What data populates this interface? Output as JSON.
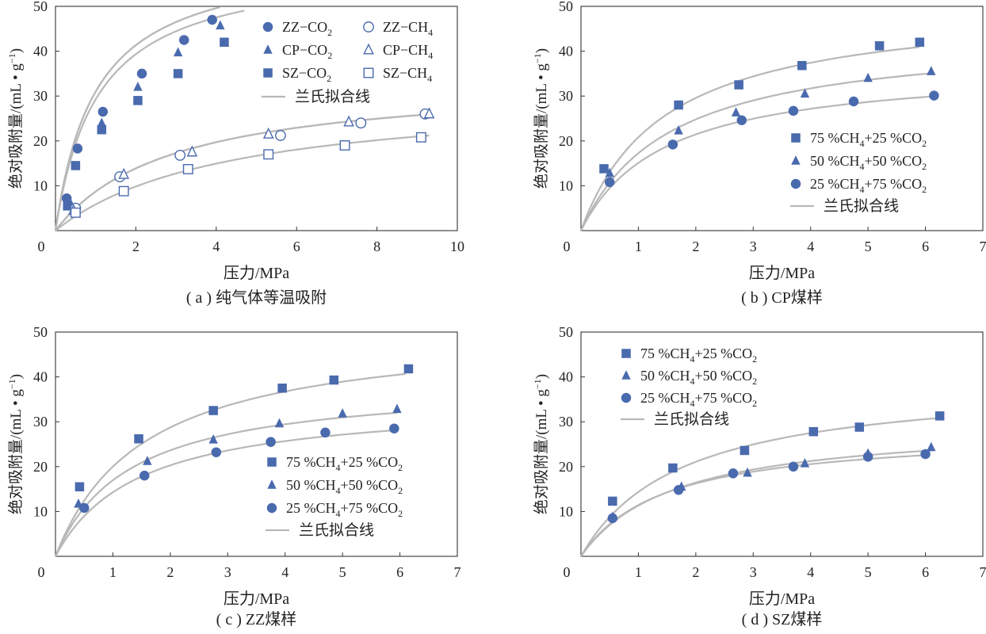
{
  "colors": {
    "marker": "#4a6aae",
    "fit": "#b8b8b8",
    "axis": "#333333"
  },
  "chart_data": [
    {
      "type": "scatter",
      "caption": "( a ) 纯气体等温吸附",
      "xlabel": "压力/MPa",
      "ylabel": "绝对吸附量/(mL • g",
      "ylabel_sup": "−1",
      "ylabel_tail": ")",
      "xlim": [
        0,
        10
      ],
      "ylim": [
        0,
        50
      ],
      "xticks": [
        "0",
        "2",
        "4",
        "6",
        "8",
        "10"
      ],
      "yticks": [
        "0",
        "10",
        "20",
        "30",
        "40",
        "50"
      ],
      "legend_pos": "top-right",
      "fit_label": "兰氏拟合线",
      "series": [
        {
          "name": "ZZ−CO",
          "sub": "2",
          "marker": "circle",
          "filled": true,
          "x": [
            0.28,
            0.55,
            1.18,
            2.15,
            3.2,
            3.9
          ],
          "y": [
            7.2,
            18.3,
            26.5,
            35.0,
            42.5,
            47.0
          ],
          "fit": [
            62,
            1.0,
            4.0
          ]
        },
        {
          "name": "CP−CO",
          "sub": "2",
          "marker": "triangle",
          "filled": true,
          "x": [
            0.35,
            1.15,
            2.05,
            3.05,
            4.1
          ],
          "y": [
            6.5,
            24.0,
            32.0,
            39.7,
            45.7
          ],
          "fit": [
            62,
            1.0,
            4.1
          ]
        },
        {
          "name": "SZ−CO",
          "sub": "2",
          "marker": "square",
          "filled": true,
          "x": [
            0.3,
            0.5,
            1.15,
            2.05,
            3.05,
            4.2
          ],
          "y": [
            5.5,
            14.5,
            22.5,
            29.0,
            35.0,
            42.0
          ],
          "fit": [
            60,
            1.05,
            4.7
          ]
        },
        {
          "name": "ZZ−CH",
          "sub": "4",
          "marker": "circle",
          "filled": false,
          "x": [
            0.5,
            1.6,
            3.1,
            5.6,
            7.6,
            9.2
          ],
          "y": [
            5.0,
            12.0,
            16.8,
            21.2,
            24.0,
            26.0
          ],
          "fit": [
            34,
            2.9,
            9.2
          ]
        },
        {
          "name": "CP−CH",
          "sub": "4",
          "marker": "triangle",
          "filled": false,
          "x": [
            0.45,
            1.7,
            3.4,
            5.3,
            7.3,
            9.3
          ],
          "y": [
            4.5,
            12.5,
            17.5,
            21.5,
            24.2,
            26.0
          ],
          "fit": [
            34,
            2.9,
            9.2
          ]
        },
        {
          "name": "SZ−CH",
          "sub": "4",
          "marker": "square",
          "filled": false,
          "x": [
            0.5,
            1.7,
            3.3,
            5.3,
            7.2,
            9.1
          ],
          "y": [
            4.0,
            8.8,
            13.7,
            17.0,
            19.0,
            20.8
          ],
          "fit": [
            31,
            4.3,
            9.3
          ]
        }
      ]
    },
    {
      "type": "scatter",
      "caption": "( b ) CP煤样",
      "xlabel": "压力/MPa",
      "ylabel": "绝对吸附量/(mL • g",
      "ylabel_sup": "−1",
      "ylabel_tail": ")",
      "xlim": [
        0,
        7
      ],
      "ylim": [
        0,
        50
      ],
      "xticks": [
        "0",
        "1",
        "2",
        "3",
        "4",
        "5",
        "6",
        "7"
      ],
      "yticks": [
        "0",
        "10",
        "20",
        "30",
        "40",
        "50"
      ],
      "legend_pos": "bottom-right",
      "fit_label": "兰氏拟合线",
      "series": [
        {
          "name": "75 %CH",
          "sub": "4",
          "tail": "+25 %CO",
          "sub2": "2",
          "marker": "square",
          "filled": true,
          "x": [
            0.4,
            1.7,
            2.75,
            3.85,
            5.2,
            5.9
          ],
          "y": [
            13.8,
            28.0,
            32.5,
            36.8,
            41.2,
            42.0
          ],
          "fit": [
            51,
            1.45,
            5.9
          ]
        },
        {
          "name": "50 %CH",
          "sub": "4",
          "tail": "+50 %CO",
          "sub2": "2",
          "marker": "triangle",
          "filled": true,
          "x": [
            0.5,
            1.7,
            2.7,
            3.9,
            5.0,
            6.1
          ],
          "y": [
            12.8,
            22.3,
            26.3,
            30.5,
            34.0,
            35.5
          ],
          "fit": [
            44,
            1.55,
            6.05
          ]
        },
        {
          "name": "25 %CH",
          "sub": "4",
          "tail": "+75 %CO",
          "sub2": "2",
          "marker": "circle",
          "filled": true,
          "x": [
            0.5,
            1.6,
            2.8,
            3.7,
            4.75,
            6.15
          ],
          "y": [
            10.8,
            19.2,
            24.6,
            26.7,
            28.8,
            30.1
          ],
          "fit": [
            37,
            1.45,
            6.1
          ]
        }
      ]
    },
    {
      "type": "scatter",
      "caption": "( c ) ZZ煤样",
      "xlabel": "压力/MPa",
      "ylabel": "绝对吸附量/(mL • g",
      "ylabel_sup": "−1",
      "ylabel_tail": ")",
      "xlim": [
        0,
        7
      ],
      "ylim": [
        0,
        50
      ],
      "xticks": [
        "0",
        "1",
        "2",
        "3",
        "4",
        "5",
        "6",
        "7"
      ],
      "yticks": [
        "0",
        "10",
        "20",
        "30",
        "40",
        "50"
      ],
      "legend_pos": "bottom-right",
      "fit_label": "兰氏拟合线",
      "series": [
        {
          "name": "75 %CH",
          "sub": "4",
          "tail": "+25 %CO",
          "sub2": "2",
          "marker": "square",
          "filled": true,
          "x": [
            0.42,
            1.45,
            2.75,
            3.95,
            4.85,
            6.15
          ],
          "y": [
            15.5,
            26.2,
            32.5,
            37.5,
            39.3,
            41.8
          ],
          "fit": [
            51,
            1.55,
            6.1
          ]
        },
        {
          "name": "50 %CH",
          "sub": "4",
          "tail": "+50 %CO",
          "sub2": "2",
          "marker": "triangle",
          "filled": true,
          "x": [
            0.4,
            1.6,
            2.75,
            3.9,
            5.0,
            5.95
          ],
          "y": [
            11.7,
            21.2,
            26.0,
            29.6,
            31.8,
            32.8
          ],
          "fit": [
            39,
            1.3,
            5.95
          ]
        },
        {
          "name": "25 %CH",
          "sub": "4",
          "tail": "+75 %CO",
          "sub2": "2",
          "marker": "circle",
          "filled": true,
          "x": [
            0.5,
            1.55,
            2.8,
            3.75,
            4.7,
            5.9
          ],
          "y": [
            10.8,
            18.0,
            23.2,
            25.5,
            27.6,
            28.5
          ],
          "fit": [
            35,
            1.45,
            5.9
          ]
        }
      ]
    },
    {
      "type": "scatter",
      "caption": "( d ) SZ煤样",
      "xlabel": "压力/MPa",
      "ylabel": "绝对吸附量/(mL • g",
      "ylabel_sup": "−1",
      "ylabel_tail": ")",
      "xlim": [
        0,
        7
      ],
      "ylim": [
        0,
        50
      ],
      "xticks": [
        "0",
        "1",
        "2",
        "3",
        "4",
        "5",
        "6",
        "7"
      ],
      "yticks": [
        "0",
        "10",
        "20",
        "30",
        "40",
        "50"
      ],
      "legend_pos": "top-left",
      "fit_label": "兰氏拟合线",
      "series": [
        {
          "name": "75 %CH",
          "sub": "4",
          "tail": "+25 %CO",
          "sub2": "2",
          "marker": "square",
          "filled": true,
          "x": [
            0.55,
            1.6,
            2.85,
            4.05,
            4.85,
            6.25
          ],
          "y": [
            12.3,
            19.7,
            23.6,
            27.8,
            28.8,
            31.3
          ],
          "fit": [
            39.5,
            1.75,
            6.25
          ]
        },
        {
          "name": "50 %CH",
          "sub": "4",
          "tail": "+50 %CO",
          "sub2": "2",
          "marker": "triangle",
          "filled": true,
          "x": [
            0.55,
            1.75,
            2.9,
            3.9,
            5.0,
            6.1
          ],
          "y": [
            8.8,
            15.5,
            18.6,
            20.7,
            22.9,
            24.3
          ],
          "fit": [
            30,
            1.65,
            6.1
          ]
        },
        {
          "name": "25 %CH",
          "sub": "4",
          "tail": "+75 %CO",
          "sub2": "2",
          "marker": "circle",
          "filled": true,
          "x": [
            0.55,
            1.7,
            2.65,
            3.7,
            5.0,
            6.0
          ],
          "y": [
            8.5,
            14.8,
            18.5,
            20.0,
            22.2,
            22.8
          ],
          "fit": [
            28,
            1.45,
            6.0
          ]
        }
      ]
    }
  ]
}
